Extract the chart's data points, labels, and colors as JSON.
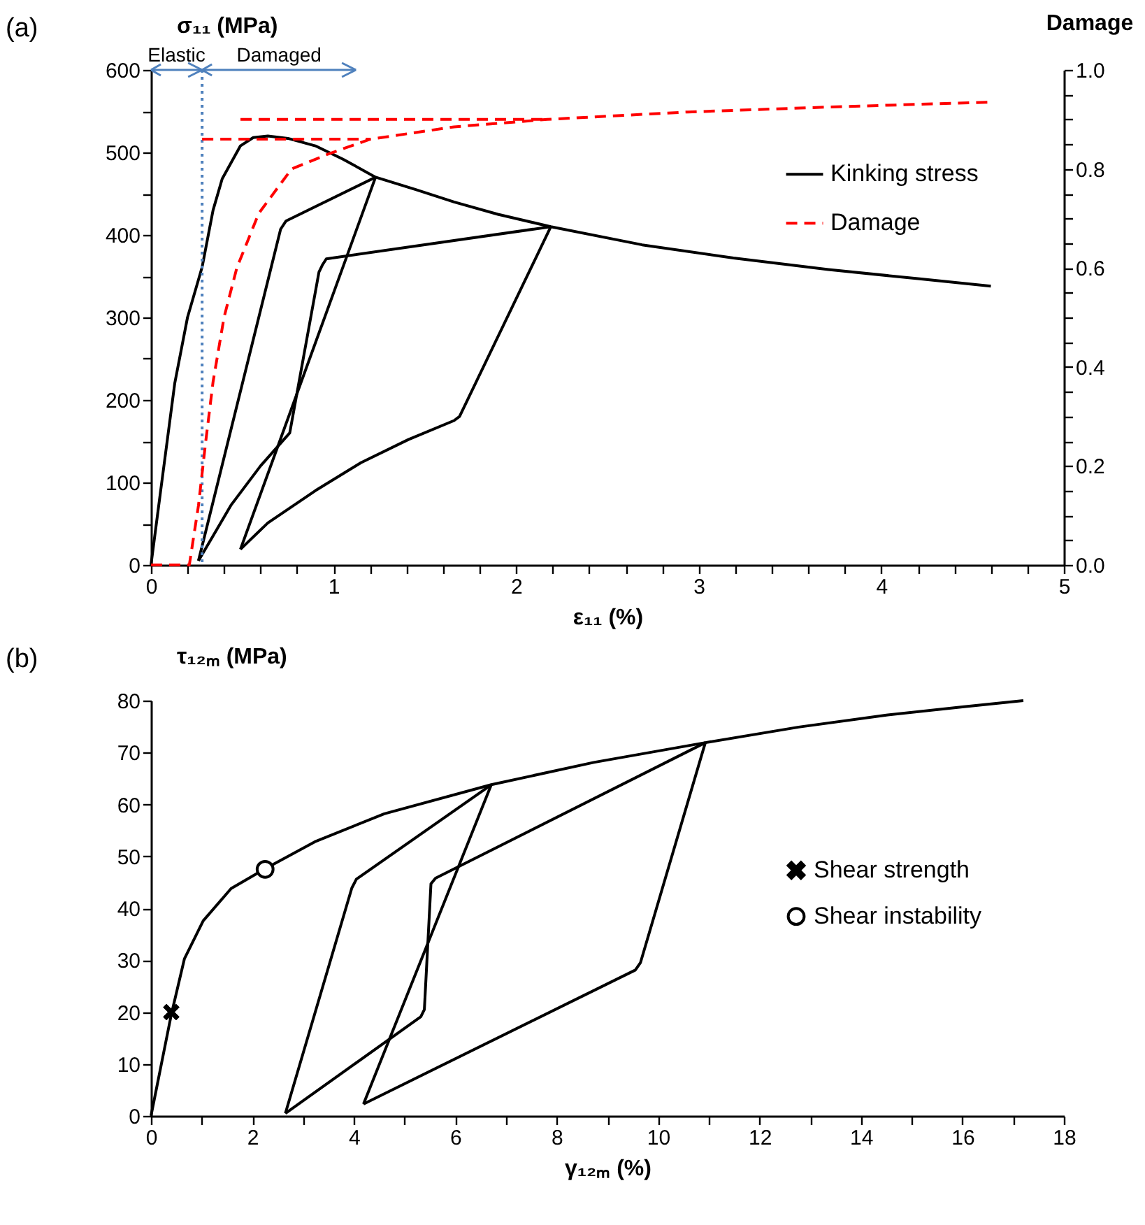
{
  "chart_data": [
    {
      "type": "line",
      "xlabel": "ε₁₁ (%)",
      "ylabel": "σ₁₁ (MPa)",
      "y2label": "Damage",
      "annotations": [
        "(a)",
        "Elastic",
        "Damaged"
      ],
      "xlim": [
        0,
        5
      ],
      "ylim": [
        0,
        600
      ],
      "y2lim": [
        0,
        1
      ],
      "xticks": [
        0,
        {
          "value": 0.2,
          "label": null
        },
        {
          "value": 0.4,
          "label": null
        },
        {
          "value": 0.6,
          "label": null
        },
        {
          "value": 0.8,
          "label": null
        },
        1,
        {
          "value": 1.2,
          "label": null
        },
        {
          "value": 1.4,
          "label": null
        },
        {
          "value": 1.6,
          "label": null
        },
        {
          "value": 1.8,
          "label": null
        },
        2,
        {
          "value": 2.2,
          "label": null
        },
        {
          "value": 2.4,
          "label": null
        },
        {
          "value": 2.6,
          "label": null
        },
        {
          "value": 2.8,
          "label": null
        },
        3,
        {
          "value": 3.2,
          "label": null
        },
        {
          "value": 3.4,
          "label": null
        },
        {
          "value": 3.6,
          "label": null
        },
        {
          "value": 3.8,
          "label": null
        },
        4,
        {
          "value": 4.2,
          "label": null
        },
        {
          "value": 4.4,
          "label": null
        },
        {
          "value": 4.6,
          "label": null
        },
        {
          "value": 4.8,
          "label": null
        },
        5
      ],
      "yticks": [
        0,
        {
          "value": 50,
          "label": null
        },
        100,
        {
          "value": 150,
          "label": null
        },
        200,
        {
          "value": 250,
          "label": null
        },
        300,
        {
          "value": 350,
          "label": null
        },
        400,
        {
          "value": 450,
          "label": null
        },
        500,
        {
          "value": 550,
          "label": null
        },
        600
      ],
      "y2ticks": [
        {
          "value": 0,
          "label": "0.0"
        },
        {
          "value": 0.05,
          "label": null
        },
        {
          "value": 0.1,
          "label": null
        },
        {
          "value": 0.15,
          "label": null
        },
        0.2,
        {
          "value": 0.25,
          "label": null
        },
        {
          "value": 0.3,
          "label": null
        },
        {
          "value": 0.35,
          "label": null
        },
        0.4,
        {
          "value": 0.45,
          "label": null
        },
        {
          "value": 0.5,
          "label": null
        },
        {
          "value": 0.55,
          "label": null
        },
        0.6,
        {
          "value": 0.65,
          "label": null
        },
        {
          "value": 0.7,
          "label": null
        },
        {
          "value": 0.75,
          "label": null
        },
        0.8,
        {
          "value": 0.85,
          "label": null
        },
        {
          "value": 0.9,
          "label": null
        },
        {
          "value": 0.95,
          "label": null
        },
        {
          "value": 1,
          "label": "1.0"
        }
      ],
      "ref_lines": [
        {
          "axis": "x",
          "value": 0.28,
          "color": "#4f81bd",
          "line_style": "dotted"
        }
      ],
      "grid": false,
      "legend": "top right",
      "series": [
        {
          "name": "Kinking stress",
          "color": "#000000",
          "line_style": "solid",
          "x": [
            0,
            0.05,
            0.13,
            0.2,
            0.28,
            0.34,
            0.39,
            0.49,
            0.56,
            0.64,
            0.75,
            0.9,
            1.05,
            1.23,
            1.45,
            1.66,
            1.9,
            2.19,
            2.69,
            3.19,
            3.71,
            4.2,
            4.6
          ],
          "values": [
            0,
            85,
            220,
            300,
            361,
            430,
            468,
            508,
            518,
            520,
            517,
            508,
            492,
            470,
            455,
            440,
            425,
            410,
            388,
            372,
            358,
            347,
            338
          ]
        },
        {
          "color": "#000000",
          "line_style": "solid",
          "x": [
            0.26,
            0.71,
            0.74,
            1.23
          ],
          "values": [
            5,
            407,
            417,
            470
          ]
        },
        {
          "color": "#000000",
          "line_style": "solid",
          "x": [
            1.23,
            0.49
          ],
          "values": [
            470,
            19
          ]
        },
        {
          "color": "#000000",
          "line_style": "solid",
          "x": [
            0.49,
            0.64,
            0.9,
            1.15,
            1.41,
            1.66,
            1.69,
            2.19
          ],
          "values": [
            19,
            51,
            90,
            124,
            152,
            175,
            180,
            410
          ]
        },
        {
          "color": "#000000",
          "line_style": "solid",
          "x": [
            2.19,
            0.96,
            0.94,
            0.92,
            0.76,
            0.6,
            0.44,
            0.26
          ],
          "values": [
            410,
            371,
            364,
            355,
            160,
            120,
            73,
            5
          ]
        },
        {
          "name": "Damage",
          "color": "#ff0000",
          "line_style": "dashed",
          "axis": "y2",
          "x": [
            0,
            0.21,
            0.26,
            0.3,
            0.34,
            0.4,
            0.47,
            0.59,
            0.77,
            0.97,
            1.2,
            1.66,
            2.17,
            2.94,
            3.71,
            4.6
          ],
          "values": [
            0,
            0,
            0.12,
            0.25,
            0.37,
            0.5,
            0.6,
            0.71,
            0.8,
            0.83,
            0.86,
            0.885,
            0.9,
            0.915,
            0.925,
            0.935
          ]
        },
        {
          "color": "#ff0000",
          "line_style": "dashed",
          "axis": "y2",
          "x": [
            0.28,
            1.2
          ],
          "values": [
            0.86,
            0.86
          ]
        },
        {
          "color": "#ff0000",
          "line_style": "dashed",
          "axis": "y2",
          "x": [
            0.49,
            2.17
          ],
          "values": [
            0.9,
            0.9
          ]
        }
      ]
    },
    {
      "type": "line",
      "xlabel": "γ₁₂ₘ (%)",
      "ylabel": "τ₁₂ₘ (MPa)",
      "annotations": [
        "(b)"
      ],
      "xlim": [
        0,
        18
      ],
      "ylim": [
        0,
        80
      ],
      "xticks": [
        0,
        {
          "value": 1,
          "label": null
        },
        2,
        {
          "value": 3,
          "label": null
        },
        4,
        {
          "value": 5,
          "label": null
        },
        6,
        {
          "value": 7,
          "label": null
        },
        8,
        {
          "value": 9,
          "label": null
        },
        10,
        {
          "value": 11,
          "label": null
        },
        12,
        {
          "value": 13,
          "label": null
        },
        14,
        {
          "value": 15,
          "label": null
        },
        16,
        {
          "value": 17,
          "label": null
        },
        18
      ],
      "yticks": [
        0,
        10,
        20,
        30,
        40,
        50,
        60,
        70,
        80
      ],
      "grid": false,
      "legend": "right",
      "series": [
        {
          "color": "#000000",
          "line_style": "solid",
          "x": [
            0,
            0.4,
            0.66,
            1.03,
            1.58,
            2.25,
            3.23,
            4.6,
            6.71,
            8.73,
            10.93,
            12.77,
            14.5,
            16,
            17.2
          ],
          "values": [
            0,
            19.5,
            30.3,
            37.6,
            43.8,
            47.6,
            52.8,
            58.2,
            63.8,
            68.1,
            71.9,
            74.9,
            77.2,
            78.8,
            80
          ]
        },
        {
          "color": "#000000",
          "line_style": "solid",
          "x": [
            2.65,
            3.96,
            4.05,
            6.71
          ],
          "values": [
            0.5,
            43.9,
            45.6,
            63.8
          ]
        },
        {
          "color": "#000000",
          "line_style": "solid",
          "x": [
            6.71,
            4.19
          ],
          "values": [
            63.8,
            2.3
          ]
        },
        {
          "color": "#000000",
          "line_style": "solid",
          "x": [
            4.19,
            9.55,
            9.65,
            10.93
          ],
          "values": [
            2.3,
            28.1,
            29.5,
            71.9
          ]
        },
        {
          "color": "#000000",
          "line_style": "solid",
          "x": [
            10.93,
            5.61,
            5.52,
            5.39,
            5.32,
            2.65
          ],
          "values": [
            71.9,
            45.8,
            44.7,
            20.5,
            19.1,
            0.5
          ]
        },
        {
          "name": "Shear strength",
          "type": "scatter",
          "marker": "cross",
          "color": "#000000",
          "x": [
            0.4
          ],
          "values": [
            20
          ]
        },
        {
          "name": "Shear instability",
          "type": "scatter",
          "marker": "circle",
          "color": "#000000",
          "x": [
            2.25
          ],
          "values": [
            47.5
          ]
        }
      ]
    }
  ]
}
